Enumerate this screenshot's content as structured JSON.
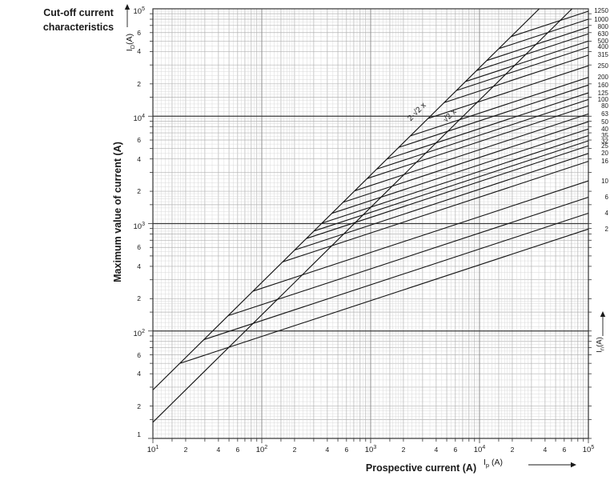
{
  "title": {
    "line1": "Cut-off current",
    "line2": "characteristics"
  },
  "symbols": {
    "y": {
      "base": "I",
      "sub": "D",
      "unit": "(A)"
    },
    "x": {
      "base": "I",
      "sub": "p",
      "unit": "(A)"
    },
    "right": {
      "base": "I",
      "sub": "n",
      "unit": "(A)"
    }
  },
  "colors": {
    "curve": "#141414",
    "grid_fine": "#d6d6d6",
    "grid_int": "#b3b3b3",
    "grid_major_v": "#8f8f8f",
    "grid_major_h": "#3a3a3a",
    "border": "#333333",
    "text": "#1a1a1a"
  },
  "chart_data": {
    "type": "line",
    "title": "Cut-off current characteristics",
    "xlabel": "Prospective current (A)",
    "ylabel": "Maximum value of current (A)",
    "x_symbol": "Ip (A)",
    "y_symbol": "ID (A)",
    "family_symbol": "In (A)",
    "x_scale": "log",
    "y_scale": "log",
    "xlim": [
      10,
      100000
    ],
    "ylim": [
      10,
      100000
    ],
    "x_major_ticks": [
      10,
      100,
      1000,
      10000,
      100000
    ],
    "y_major_ticks": [
      100000,
      10000,
      1000,
      100
    ],
    "y_bottom_label": "1",
    "labeled_minor_multiples": [
      2,
      4,
      6
    ],
    "y_labeled_minor_multiples": [
      6,
      4,
      2
    ],
    "grid_int_multiples": [
      1.5,
      2,
      3,
      4,
      5,
      6,
      7,
      8,
      9
    ],
    "grid_fine_multiples": [
      1.1,
      1.2,
      1.3,
      1.4,
      1.6,
      1.7,
      1.8,
      1.9,
      2.2,
      2.4,
      2.6,
      2.8,
      3.5,
      4.5,
      5.5,
      6.5,
      7.5,
      8.5,
      9.5
    ],
    "grid": "on",
    "legend_position": "right-edge labels",
    "asymptotes": [
      {
        "label": "2·√2 x",
        "factor": 2.8284
      },
      {
        "label": "√2 x",
        "factor": 1.4142
      }
    ],
    "series_model": {
      "description": "Each rated current In is a straight log-log line of slope 1/3 that branches off the 2·√2 asymptote and ends at Ip = 100 kA at the listed cut-off current.",
      "slope_loglog": 0.33333
    },
    "series": [
      {
        "In": 1250,
        "cutoff_at_100kA": 95000
      },
      {
        "In": 1000,
        "cutoff_at_100kA": 80000
      },
      {
        "In": 800,
        "cutoff_at_100kA": 67500
      },
      {
        "In": 630,
        "cutoff_at_100kA": 58500
      },
      {
        "In": 500,
        "cutoff_at_100kA": 50000
      },
      {
        "In": 400,
        "cutoff_at_100kA": 44000
      },
      {
        "In": 315,
        "cutoff_at_100kA": 37000
      },
      {
        "In": 250,
        "cutoff_at_100kA": 29500
      },
      {
        "In": 200,
        "cutoff_at_100kA": 23000
      },
      {
        "In": 160,
        "cutoff_at_100kA": 19500
      },
      {
        "In": 125,
        "cutoff_at_100kA": 16500
      },
      {
        "In": 100,
        "cutoff_at_100kA": 14300
      },
      {
        "In": 80,
        "cutoff_at_100kA": 12500
      },
      {
        "In": 63,
        "cutoff_at_100kA": 10500
      },
      {
        "In": 50,
        "cutoff_at_100kA": 8900
      },
      {
        "In": 40,
        "cutoff_at_100kA": 7600
      },
      {
        "In": 35,
        "cutoff_at_100kA": 6600
      },
      {
        "In": 32,
        "cutoff_at_100kA": 5900
      },
      {
        "In": 25,
        "cutoff_at_100kA": 5300
      },
      {
        "In": 20,
        "cutoff_at_100kA": 4500
      },
      {
        "In": 16,
        "cutoff_at_100kA": 3800
      },
      {
        "In": 10,
        "cutoff_at_100kA": 2500
      },
      {
        "In": 6,
        "cutoff_at_100kA": 1760
      },
      {
        "In": 4,
        "cutoff_at_100kA": 1250
      },
      {
        "In": 2,
        "cutoff_at_100kA": 890
      }
    ]
  }
}
